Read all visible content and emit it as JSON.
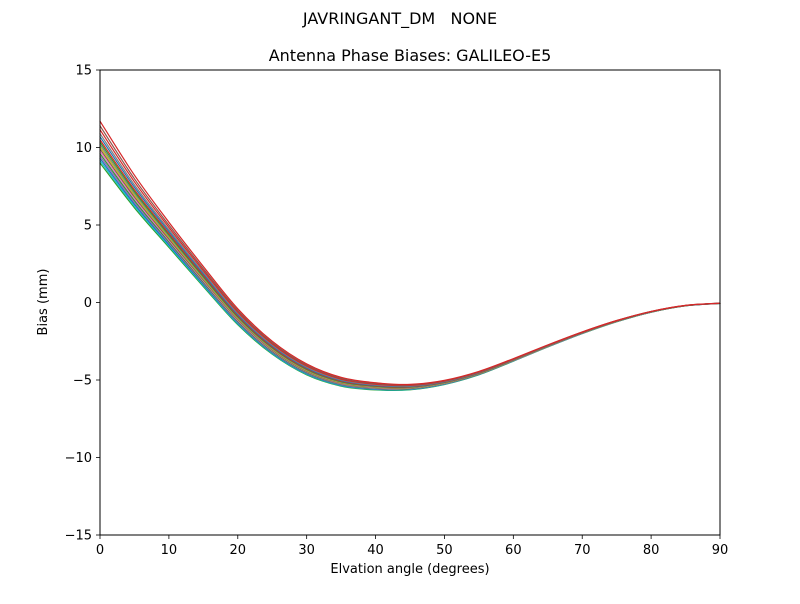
{
  "chart_data": {
    "type": "line",
    "suptitle": "JAVRINGANT_DM   NONE",
    "title": "Antenna Phase Biases: GALILEO-E5",
    "xlabel": "Elvation angle (degrees)",
    "ylabel": "Bias (mm)",
    "xlim": [
      0,
      90
    ],
    "ylim": [
      -15,
      15
    ],
    "grid": false,
    "legend": "none",
    "xtick_values": [
      0,
      10,
      20,
      30,
      40,
      50,
      60,
      70,
      80,
      90
    ],
    "xtick_labels": [
      "0",
      "10",
      "20",
      "30",
      "40",
      "50",
      "60",
      "70",
      "80",
      "90"
    ],
    "ytick_values": [
      -15,
      -10,
      -5,
      0,
      5,
      10,
      15
    ],
    "ytick_labels": [
      "−15",
      "−10",
      "−5",
      "0",
      "5",
      "10",
      "15"
    ],
    "x": [
      0,
      5,
      10,
      15,
      20,
      25,
      30,
      35,
      40,
      45,
      50,
      55,
      60,
      65,
      70,
      75,
      80,
      85,
      90
    ],
    "base_y": [
      10.4,
      7.2,
      4.4,
      1.7,
      -0.9,
      -2.9,
      -4.3,
      -5.1,
      -5.4,
      -5.45,
      -5.15,
      -4.55,
      -3.7,
      -2.8,
      -1.95,
      -1.2,
      -0.6,
      -0.2,
      -0.05
    ],
    "spread": [
      1.0,
      0.78,
      0.6,
      0.48,
      0.38,
      0.31,
      0.26,
      0.21,
      0.17,
      0.13,
      0.1,
      0.08,
      0.06,
      0.05,
      0.04,
      0.03,
      0.02,
      0.01,
      0.005
    ],
    "series_rule": "series y[i] = base_y[i] + offset * spread[i]",
    "series": [
      {
        "name": "line-01",
        "color": "#2ca02c",
        "offset": -1.4
      },
      {
        "name": "line-02",
        "color": "#17becf",
        "offset": -1.25
      },
      {
        "name": "line-03",
        "color": "#1f77b4",
        "offset": -1.1
      },
      {
        "name": "line-04",
        "color": "#9467bd",
        "offset": -0.95
      },
      {
        "name": "line-05",
        "color": "#2ca02c",
        "offset": -0.8
      },
      {
        "name": "line-06",
        "color": "#e377c2",
        "offset": -0.65
      },
      {
        "name": "line-07",
        "color": "#8c564b",
        "offset": -0.5
      },
      {
        "name": "line-08",
        "color": "#bcbd22",
        "offset": -0.35
      },
      {
        "name": "line-09",
        "color": "#7f7f7f",
        "offset": -0.2
      },
      {
        "name": "line-10",
        "color": "#2ca02c",
        "offset": -0.05
      },
      {
        "name": "line-11",
        "color": "#d62728",
        "offset": 0.1
      },
      {
        "name": "line-12",
        "color": "#1f77b4",
        "offset": 0.3
      },
      {
        "name": "line-13",
        "color": "#7f7f7f",
        "offset": 0.5
      },
      {
        "name": "line-14",
        "color": "#d62728",
        "offset": 0.75
      },
      {
        "name": "line-15",
        "color": "#8c564b",
        "offset": 1.0
      },
      {
        "name": "line-16",
        "color": "#d62728",
        "offset": 1.3
      }
    ],
    "axis_color": "#000000",
    "background_color": "#ffffff"
  }
}
